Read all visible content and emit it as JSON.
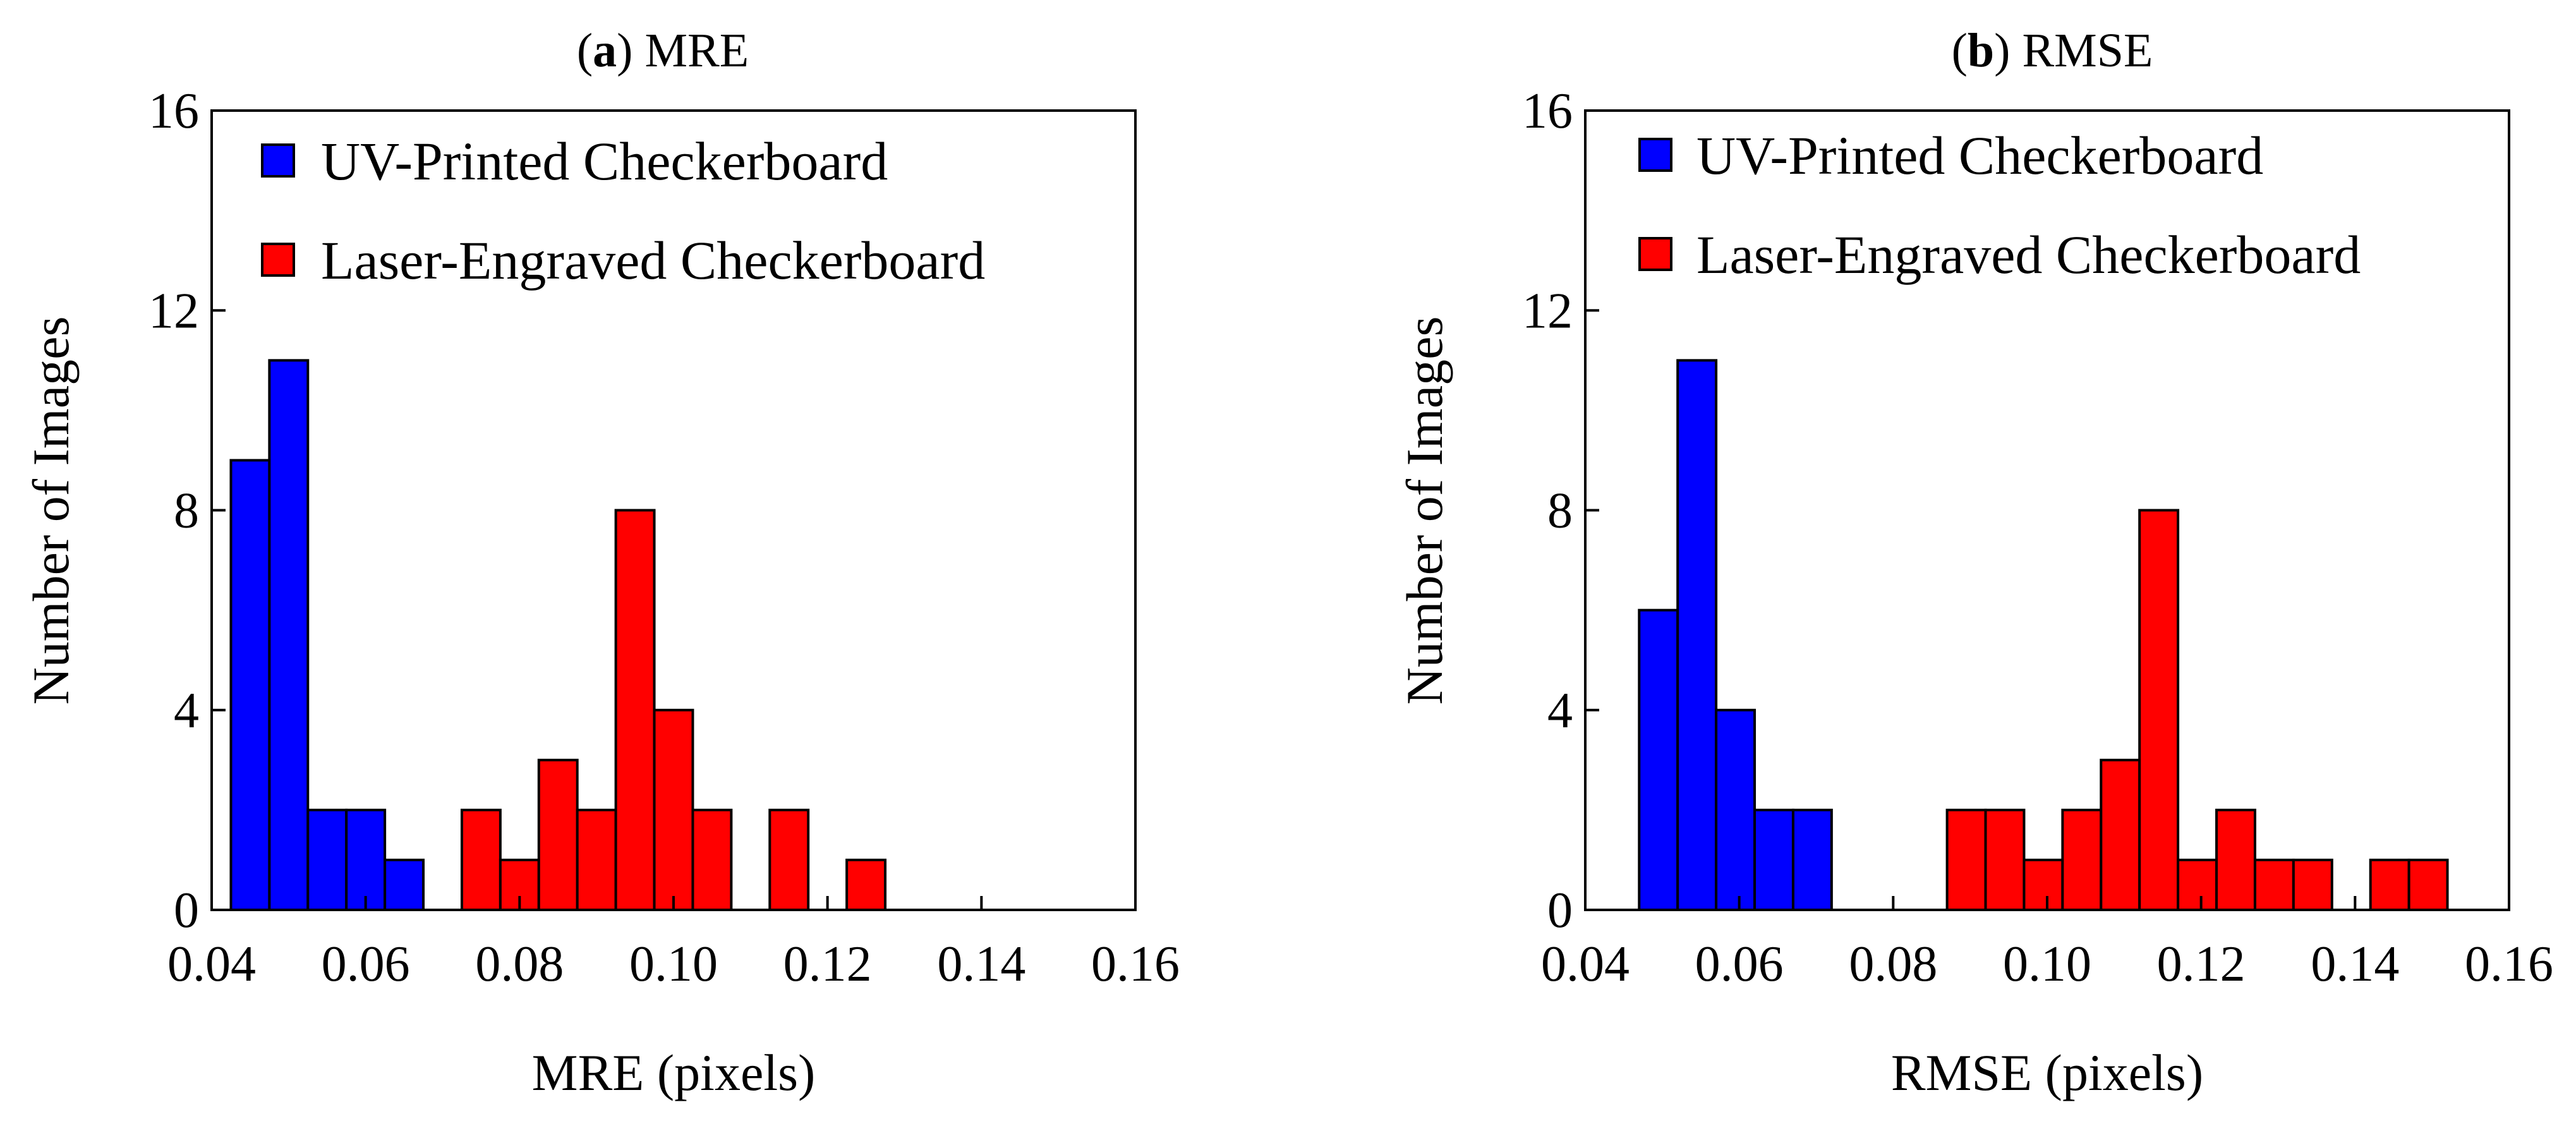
{
  "chart_data": [
    {
      "type": "bar",
      "panel_letter": "a",
      "title_rest": ") MRE",
      "xlabel": "MRE (pixels)",
      "ylabel": "Number of Images",
      "xlim": [
        0.04,
        0.16
      ],
      "ylim": [
        0,
        16
      ],
      "xticks": [
        "0.04",
        "0.06",
        "0.08",
        "0.10",
        "0.12",
        "0.14",
        "0.16"
      ],
      "yticks": [
        "0",
        "4",
        "8",
        "12",
        "16"
      ],
      "bin_width": 0.005,
      "legend_position": "top-left",
      "series": [
        {
          "name": "UV-Printed Checkerboard",
          "color": "#0000ff",
          "bins": [
            {
              "x0": 0.0425,
              "count": 9
            },
            {
              "x0": 0.0475,
              "count": 11
            },
            {
              "x0": 0.0525,
              "count": 2
            },
            {
              "x0": 0.0575,
              "count": 2
            },
            {
              "x0": 0.0625,
              "count": 1
            }
          ]
        },
        {
          "name": "Laser-Engraved Checkerboard",
          "color": "#ff0000",
          "bins": [
            {
              "x0": 0.0725,
              "count": 2
            },
            {
              "x0": 0.0775,
              "count": 1
            },
            {
              "x0": 0.0825,
              "count": 3
            },
            {
              "x0": 0.0875,
              "count": 2
            },
            {
              "x0": 0.0925,
              "count": 8
            },
            {
              "x0": 0.0975,
              "count": 4
            },
            {
              "x0": 0.1025,
              "count": 2
            },
            {
              "x0": 0.1125,
              "count": 2
            },
            {
              "x0": 0.1225,
              "count": 1
            }
          ]
        }
      ]
    },
    {
      "type": "bar",
      "panel_letter": "b",
      "title_rest": ") RMSE",
      "xlabel": "RMSE (pixels)",
      "ylabel": "Number of Images",
      "xlim": [
        0.04,
        0.16
      ],
      "ylim": [
        0,
        16
      ],
      "xticks": [
        "0.04",
        "0.06",
        "0.08",
        "0.10",
        "0.12",
        "0.14",
        "0.16"
      ],
      "yticks": [
        "0",
        "4",
        "8",
        "12",
        "16"
      ],
      "bin_width": 0.005,
      "legend_position": "top-left",
      "series": [
        {
          "name": "UV-Printed Checkerboard",
          "color": "#0000ff",
          "bins": [
            {
              "x0": 0.047,
              "count": 6
            },
            {
              "x0": 0.052,
              "count": 11
            },
            {
              "x0": 0.057,
              "count": 4
            },
            {
              "x0": 0.062,
              "count": 2
            },
            {
              "x0": 0.067,
              "count": 2
            }
          ]
        },
        {
          "name": "Laser-Engraved Checkerboard",
          "color": "#ff0000",
          "bins": [
            {
              "x0": 0.087,
              "count": 2
            },
            {
              "x0": 0.092,
              "count": 2
            },
            {
              "x0": 0.097,
              "count": 1
            },
            {
              "x0": 0.102,
              "count": 2
            },
            {
              "x0": 0.107,
              "count": 3
            },
            {
              "x0": 0.112,
              "count": 8
            },
            {
              "x0": 0.117,
              "count": 1
            },
            {
              "x0": 0.122,
              "count": 2
            },
            {
              "x0": 0.127,
              "count": 1
            },
            {
              "x0": 0.132,
              "count": 1
            },
            {
              "x0": 0.142,
              "count": 1
            },
            {
              "x0": 0.147,
              "count": 1
            }
          ]
        }
      ]
    }
  ]
}
